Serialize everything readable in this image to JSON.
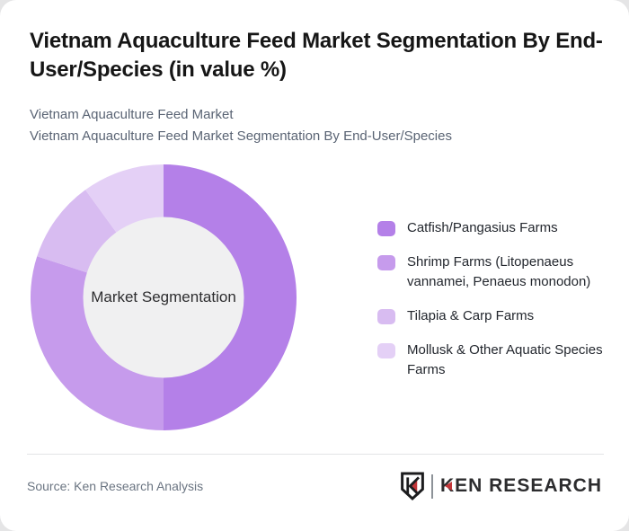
{
  "page": {
    "background_color": "#e5e5e6",
    "card_background": "#ffffff"
  },
  "header": {
    "title": "Vietnam Aquaculture Feed Market Segmentation By End-User/Species (in value %)",
    "subtitle_line1": "Vietnam Aquaculture Feed Market",
    "subtitle_line2": "Vietnam Aquaculture Feed Market Segmentation By End-User/Species"
  },
  "chart_data": {
    "type": "pie",
    "variant": "donut",
    "title": "Vietnam Aquaculture Feed Market Segmentation By End-User/Species (in value %)",
    "center_label": "Market Segmentation",
    "categories": [
      "Catfish/Pangasius Farms",
      "Shrimp Farms (Litopenaeus vannamei, Penaeus monodon)",
      "Tilapia & Carp Farms",
      "Mollusk & Other Aquatic Species Farms"
    ],
    "values": [
      50,
      30,
      10,
      10
    ],
    "unit": "%",
    "colors": [
      "#b480e8",
      "#c69bec",
      "#d8bcf1",
      "#e4d0f6"
    ],
    "start_angle_deg_from_12_clockwise": 0,
    "data_labels_visible": false,
    "legend_position": "right",
    "inner_circle_color": "#f0f0f1"
  },
  "legend": {
    "items": [
      {
        "label": "Catfish/Pangasius Farms",
        "color": "#b480e8"
      },
      {
        "label": "Shrimp Farms (Litopenaeus vannamei, Penaeus monodon)",
        "color": "#c69bec"
      },
      {
        "label": "Tilapia & Carp Farms",
        "color": "#d8bcf1"
      },
      {
        "label": "Mollusk & Other Aquatic Species Farms",
        "color": "#e4d0f6"
      }
    ]
  },
  "footer": {
    "source": "Source: Ken Research Analysis",
    "logo_text": "KEN RESEARCH"
  }
}
